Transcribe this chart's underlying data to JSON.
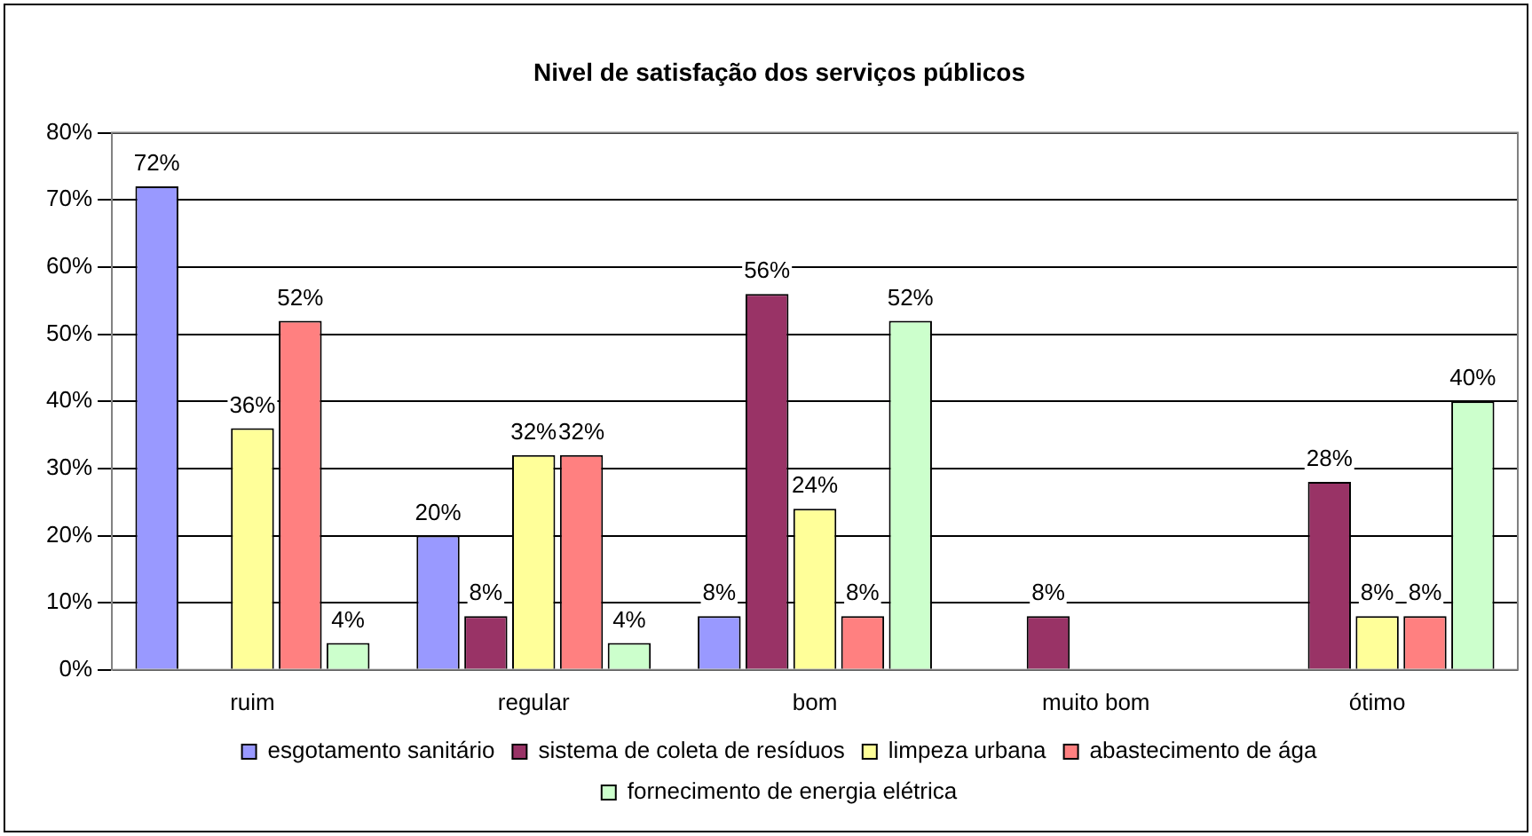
{
  "chart_data": {
    "type": "bar",
    "title": "Nivel de satisfação dos serviços públicos",
    "categories": [
      "ruim",
      "regular",
      "bom",
      "muito bom",
      "ótimo"
    ],
    "series": [
      {
        "name": "esgotamento sanitário",
        "color": "#9999ff",
        "values": [
          72,
          20,
          8,
          0,
          0
        ],
        "value_labels": [
          "72%",
          "20%",
          "8%",
          null,
          null
        ]
      },
      {
        "name": "sistema de coleta de resíduos",
        "color": "#993366",
        "values": [
          0,
          8,
          56,
          8,
          28
        ],
        "value_labels": [
          null,
          "8%",
          "56%",
          "8%",
          "28%"
        ]
      },
      {
        "name": "limpeza urbana",
        "color": "#ffff99",
        "values": [
          36,
          32,
          24,
          0,
          8
        ],
        "value_labels": [
          "36%",
          "32%",
          "24%",
          null,
          "8%"
        ]
      },
      {
        "name": "abastecimento de ága",
        "color": "#ff8080",
        "values": [
          52,
          32,
          8,
          0,
          8
        ],
        "value_labels": [
          "52%",
          "32%",
          "8%",
          null,
          "8%"
        ]
      },
      {
        "name": "fornecimento de energia elétrica",
        "color": "#ccffcc",
        "values": [
          4,
          4,
          52,
          0,
          40
        ],
        "value_labels": [
          "4%",
          "4%",
          "52%",
          null,
          "40%"
        ]
      }
    ],
    "ylim": [
      0,
      80
    ],
    "yticks": [
      {
        "value": 0,
        "label": "0%"
      },
      {
        "value": 10,
        "label": "10%"
      },
      {
        "value": 20,
        "label": "20%"
      },
      {
        "value": 30,
        "label": "30%"
      },
      {
        "value": 40,
        "label": "40%"
      },
      {
        "value": 50,
        "label": "50%"
      },
      {
        "value": 60,
        "label": "60%"
      },
      {
        "value": 70,
        "label": "70%"
      },
      {
        "value": 80,
        "label": "80%"
      }
    ],
    "grid": "y",
    "legend": "bottom"
  }
}
